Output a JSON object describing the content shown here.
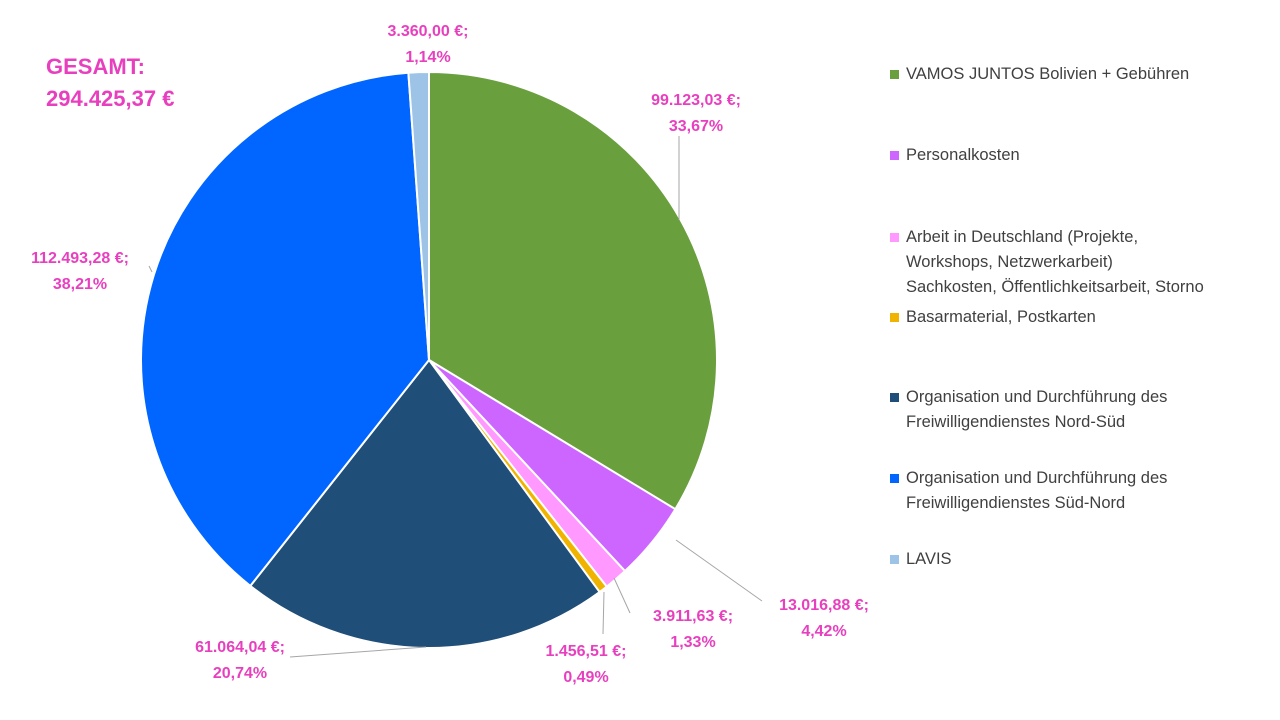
{
  "total": {
    "label": "GESAMT:",
    "value": "294.425,37 €",
    "color": "#e83fbf"
  },
  "chart_data": {
    "type": "pie",
    "title": "",
    "series": [
      {
        "name": "VAMOS JUNTOS Bolivien + Gebühren",
        "value": 99123.03,
        "value_label": "99.123,03 €;",
        "percent_label": "33,67%",
        "color": "#6a9f3e"
      },
      {
        "name": "Personalkosten",
        "value": 13016.88,
        "value_label": "13.016,88 €;",
        "percent_label": "4,42%",
        "color": "#cc66ff"
      },
      {
        "name": "Arbeit in Deutschland (Projekte, Workshops, Netzwerkarbeit) Sachkosten, Öffentlichkeitsarbeit, Storno",
        "value": 3911.63,
        "value_label": "3.911,63 €;",
        "percent_label": "1,33%",
        "color": "#ff99ff"
      },
      {
        "name": "Basarmaterial, Postkarten",
        "value": 1456.51,
        "value_label": "1.456,51 €;",
        "percent_label": "0,49%",
        "color": "#f0b400"
      },
      {
        "name": "Organisation und Durchführung des Freiwilligendienstes Nord-Süd",
        "value": 61064.04,
        "value_label": "61.064,04 €;",
        "percent_label": "20,74%",
        "color": "#1f4e79"
      },
      {
        "name": "Organisation und Durchführung des Freiwilligendienstes Süd-Nord",
        "value": 112493.28,
        "value_label": "112.493,28 €;",
        "percent_label": "38,21%",
        "color": "#0066ff"
      },
      {
        "name": "LAVIS",
        "value": 3360.0,
        "value_label": "3.360,00 €;",
        "percent_label": "1,14%",
        "color": "#9dc3e6"
      }
    ],
    "label_color": "#e83fbf",
    "legend_position": "right"
  },
  "legend": [
    {
      "text": "VAMOS JUNTOS Bolivien + Gebühren",
      "color": "#6a9f3e"
    },
    {
      "text": "Personalkosten",
      "color": "#cc66ff"
    },
    {
      "text": "Arbeit in Deutschland (Projekte,\nWorkshops, Netzwerkarbeit)\nSachkosten, Öffentlichkeitsarbeit, Storno",
      "color": "#ff99ff"
    },
    {
      "text": "Basarmaterial, Postkarten",
      "color": "#f0b400"
    },
    {
      "text": "Organisation und Durchführung des\nFreiwilligendienstes Nord-Süd",
      "color": "#1f4e79"
    },
    {
      "text": "Organisation und Durchführung des\nFreiwilligendienstes Süd-Nord",
      "color": "#0066ff"
    },
    {
      "text": "LAVIS",
      "color": "#9dc3e6"
    }
  ]
}
